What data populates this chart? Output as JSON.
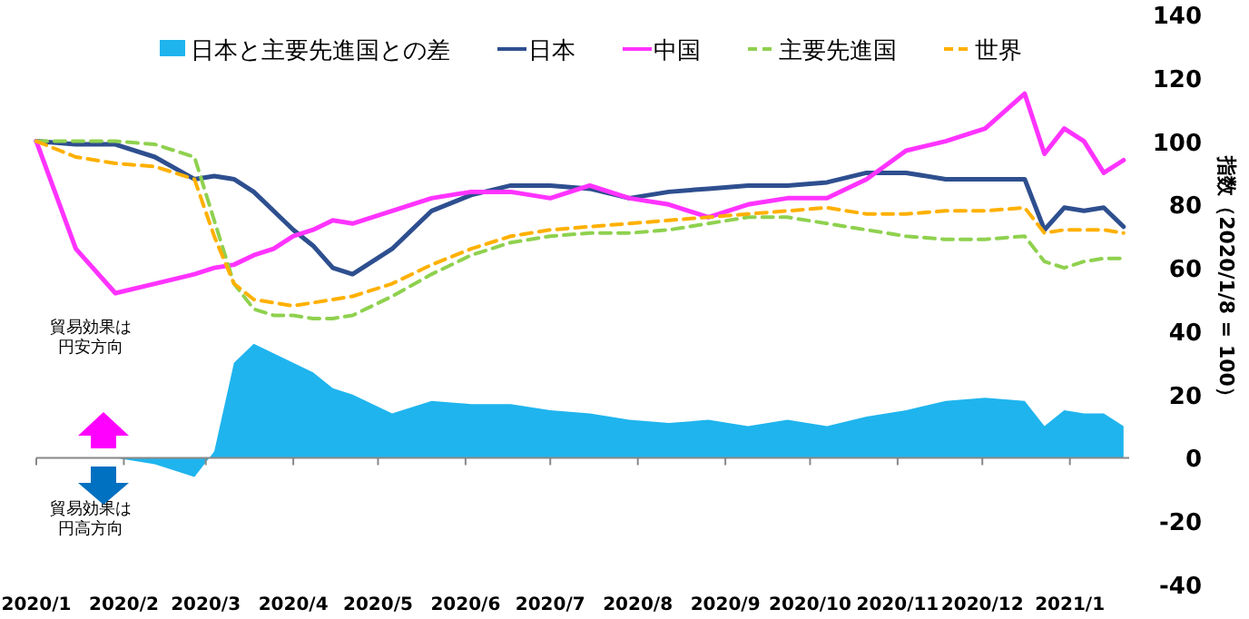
{
  "chart_data": {
    "type": "line",
    "ylabel": "指数（2020/1/8 = 100）",
    "x": [
      "2020-01-08",
      "2020-01-22",
      "2020-02-05",
      "2020-02-19",
      "2020-03-04",
      "2020-03-11",
      "2020-03-18",
      "2020-03-25",
      "2020-04-01",
      "2020-04-08",
      "2020-04-15",
      "2020-04-22",
      "2020-04-29",
      "2020-05-13",
      "2020-05-27",
      "2020-06-10",
      "2020-06-24",
      "2020-07-08",
      "2020-07-22",
      "2020-08-05",
      "2020-08-19",
      "2020-09-02",
      "2020-09-16",
      "2020-09-30",
      "2020-10-14",
      "2020-10-28",
      "2020-11-11",
      "2020-11-25",
      "2020-12-09",
      "2020-12-23",
      "2020-12-30",
      "2021-01-06",
      "2021-01-13",
      "2021-01-20",
      "2021-01-27"
    ],
    "series": [
      {
        "name": "日本と主要先進国との差",
        "type": "area",
        "color": "#1fb4ee",
        "values": [
          0,
          0,
          0,
          -2,
          -6,
          2,
          30,
          36,
          33,
          30,
          27,
          22,
          20,
          14,
          18,
          17,
          17,
          15,
          14,
          12,
          11,
          12,
          10,
          12,
          10,
          13,
          15,
          18,
          19,
          18,
          10,
          15,
          14,
          14,
          10
        ]
      },
      {
        "name": "日本",
        "color": "#2e4f8f",
        "line_style": "solid",
        "values": [
          100,
          99,
          99,
          95,
          88,
          89,
          88,
          84,
          78,
          72,
          67,
          60,
          58,
          66,
          78,
          83,
          86,
          86,
          85,
          82,
          84,
          85,
          86,
          86,
          87,
          90,
          90,
          88,
          88,
          88,
          72,
          79,
          78,
          79,
          73
        ]
      },
      {
        "name": "中国",
        "color": "#ff33ff",
        "line_style": "solid",
        "values": [
          100,
          66,
          52,
          55,
          58,
          60,
          61,
          64,
          66,
          70,
          72,
          75,
          74,
          78,
          82,
          84,
          84,
          82,
          86,
          82,
          80,
          76,
          80,
          82,
          82,
          88,
          97,
          100,
          104,
          115,
          96,
          104,
          100,
          90,
          94
        ]
      },
      {
        "name": "主要先進国",
        "color": "#8fd14f",
        "line_style": "dashed",
        "values": [
          100,
          100,
          100,
          99,
          95,
          75,
          55,
          47,
          45,
          45,
          44,
          44,
          45,
          51,
          58,
          64,
          68,
          70,
          71,
          71,
          72,
          74,
          76,
          76,
          74,
          72,
          70,
          69,
          69,
          70,
          62,
          60,
          62,
          63,
          63
        ]
      },
      {
        "name": "世界",
        "color": "#ffb000",
        "line_style": "dashed",
        "values": [
          100,
          95,
          93,
          92,
          88,
          70,
          55,
          50,
          49,
          48,
          49,
          50,
          51,
          55,
          61,
          66,
          70,
          72,
          73,
          74,
          75,
          76,
          77,
          78,
          79,
          77,
          77,
          78,
          78,
          79,
          71,
          72,
          72,
          72,
          71
        ]
      }
    ],
    "xlim": [
      "2020-01-08",
      "2021-01-29"
    ],
    "xticks": [
      {
        "value": "2020-01-08",
        "label": "2020/1"
      },
      {
        "value": "2020-02-08",
        "label": "2020/2"
      },
      {
        "value": "2020-03-08",
        "label": "2020/3"
      },
      {
        "value": "2020-04-08",
        "label": "2020/4"
      },
      {
        "value": "2020-05-08",
        "label": "2020/5"
      },
      {
        "value": "2020-06-08",
        "label": "2020/6"
      },
      {
        "value": "2020-07-08",
        "label": "2020/7"
      },
      {
        "value": "2020-08-08",
        "label": "2020/8"
      },
      {
        "value": "2020-09-08",
        "label": "2020/9"
      },
      {
        "value": "2020-10-08",
        "label": "2020/10"
      },
      {
        "value": "2020-11-08",
        "label": "2020/11"
      },
      {
        "value": "2020-12-08",
        "label": "2020/12"
      },
      {
        "value": "2021-01-08",
        "label": "2021/1"
      }
    ],
    "ylim": [
      -40,
      140
    ],
    "yticks": [
      -40,
      -20,
      0,
      20,
      40,
      60,
      80,
      100,
      120,
      140
    ],
    "grid": false,
    "legend": "top",
    "marker": "none",
    "ref_lines": [
      {
        "axis": "y",
        "value": 0,
        "color": "#888888"
      }
    ],
    "annotations": [
      "貿易効果は円安方向",
      "貿易効果は円高方向"
    ]
  }
}
